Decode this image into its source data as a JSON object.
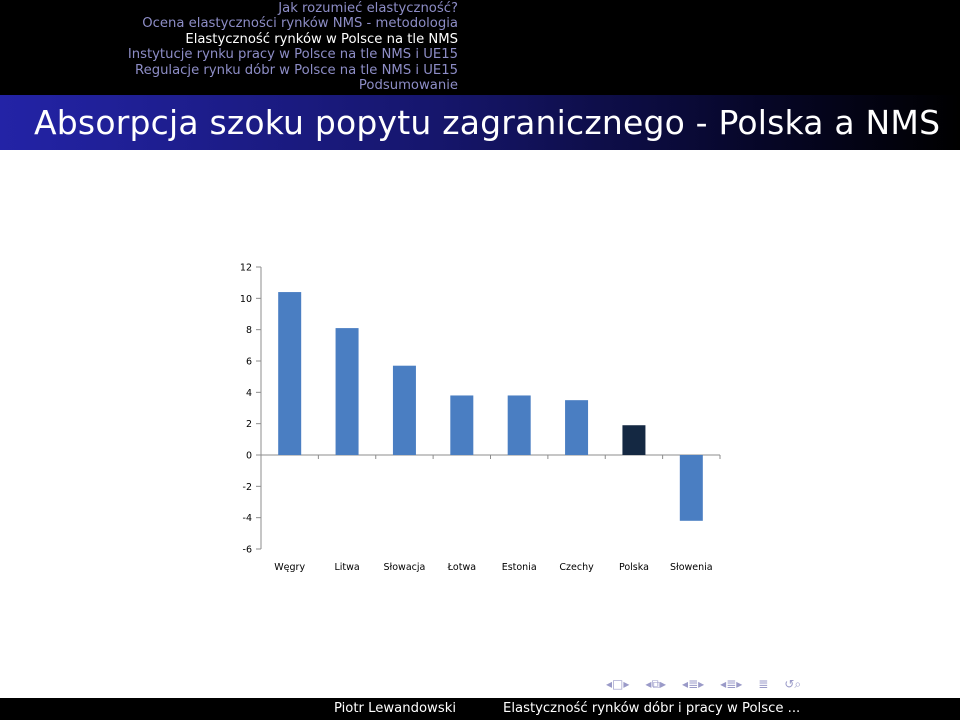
{
  "header": {
    "sections": [
      {
        "label": "Jak rozumieć elastyczność?",
        "active": false
      },
      {
        "label": "Ocena elastyczności rynków NMS - metodologia",
        "active": false
      },
      {
        "label": "Elastyczność rynków w Polsce na tle NMS",
        "active": true
      },
      {
        "label": "Instytucje rynku pracy w Polsce na tle NMS i UE15",
        "active": false
      },
      {
        "label": "Regulacje rynku dóbr w Polsce na tle NMS i UE15",
        "active": false
      },
      {
        "label": "Podsumowanie",
        "active": false
      }
    ]
  },
  "slide": {
    "title": "Absorpcja szoku popytu zagranicznego - Polska a NMS"
  },
  "chart_data": {
    "type": "bar",
    "categories": [
      "Węgry",
      "Litwa",
      "Słowacja",
      "Łotwa",
      "Estonia",
      "Czechy",
      "Polska",
      "Słowenia"
    ],
    "values": [
      10.4,
      8.1,
      5.7,
      3.8,
      3.8,
      3.5,
      1.9,
      -4.2
    ],
    "highlight_category": "Polska",
    "colors": {
      "default": "#4a7ec2",
      "highlight": "#142842"
    },
    "ylim": [
      -6,
      12
    ],
    "yticks": [
      -6,
      -4,
      -2,
      0,
      2,
      4,
      6,
      8,
      10,
      12
    ],
    "title": "",
    "xlabel": "",
    "ylabel": "",
    "grid": false,
    "legend": "none"
  },
  "nav_symbols": [
    "◂",
    "□",
    "▸",
    "◂",
    "⧉",
    "▸",
    "◂",
    "≣",
    "▸",
    "◂",
    "≣",
    "▸",
    "≣",
    "↺",
    "⌕"
  ],
  "footer": {
    "author": "Piotr Lewandowski",
    "short_title": "Elastyczność rynków dóbr i pracy w Polsce ..."
  }
}
